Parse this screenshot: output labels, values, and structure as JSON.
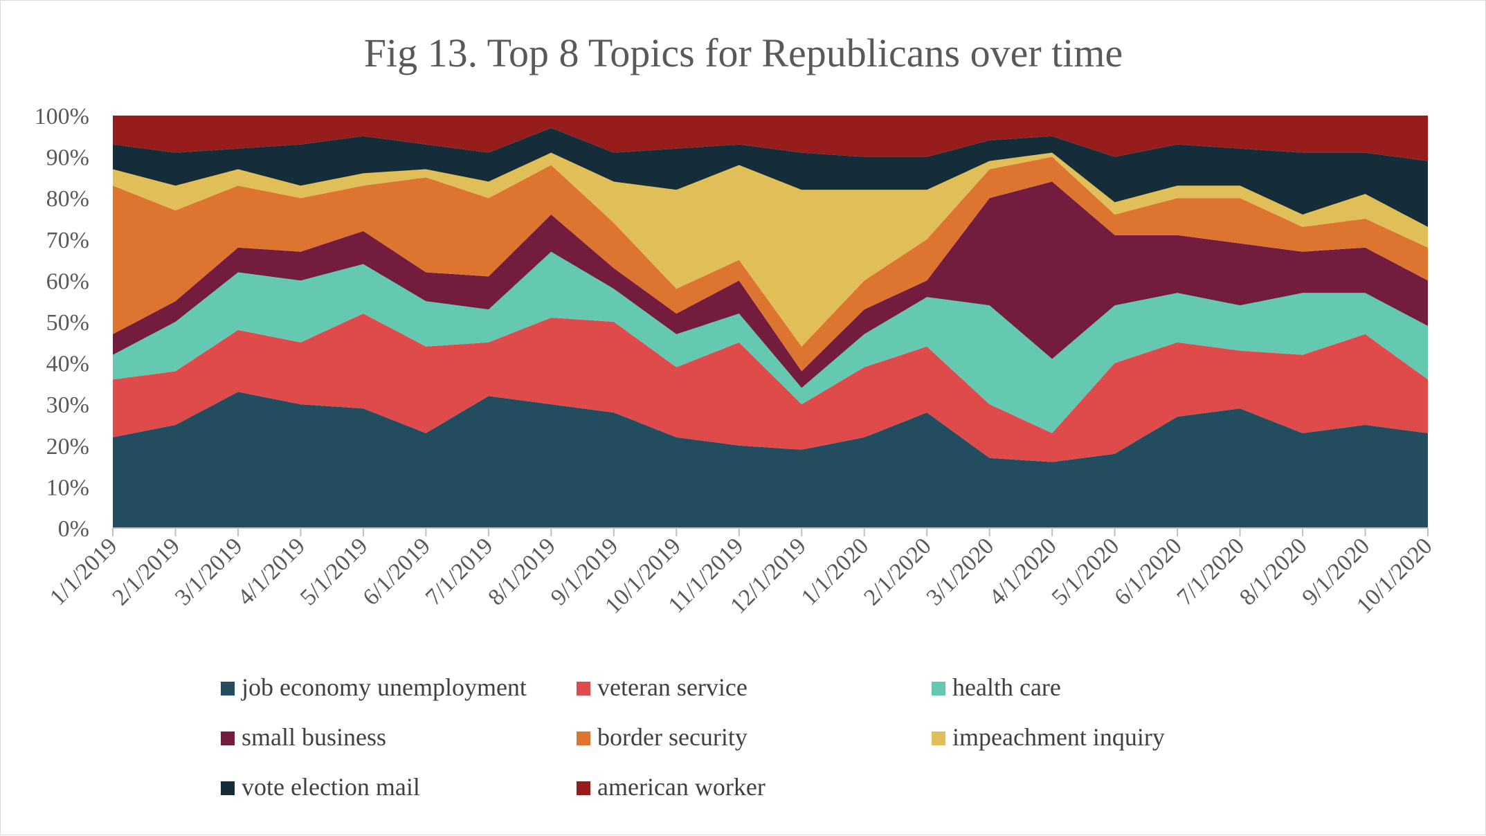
{
  "chart_data": {
    "type": "area",
    "stacked": "percent",
    "title": "Fig 13. Top 8 Topics for Republicans over time",
    "xlabel": "",
    "ylabel": "",
    "ylim": [
      0,
      100
    ],
    "y_ticks": [
      "0%",
      "10%",
      "20%",
      "30%",
      "40%",
      "50%",
      "60%",
      "70%",
      "80%",
      "90%",
      "100%"
    ],
    "grid": false,
    "legend_position": "bottom",
    "categories": [
      "1/1/2019",
      "2/1/2019",
      "3/1/2019",
      "4/1/2019",
      "5/1/2019",
      "6/1/2019",
      "7/1/2019",
      "8/1/2019",
      "9/1/2019",
      "10/1/2019",
      "11/1/2019",
      "12/1/2019",
      "1/1/2020",
      "2/1/2020",
      "3/1/2020",
      "4/1/2020",
      "5/1/2020",
      "6/1/2020",
      "7/1/2020",
      "8/1/2020",
      "9/1/2020",
      "10/1/2020"
    ],
    "series": [
      {
        "name": "job economy unemployment",
        "color": "#244c5f",
        "values": [
          22,
          25,
          33,
          30,
          29,
          23,
          32,
          30,
          28,
          22,
          20,
          19,
          22,
          28,
          17,
          16,
          18,
          27,
          29,
          23,
          25,
          23
        ]
      },
      {
        "name": "veteran service",
        "color": "#df4a4a",
        "values": [
          14,
          13,
          15,
          15,
          23,
          21,
          13,
          21,
          22,
          17,
          25,
          11,
          17,
          16,
          13,
          7,
          22,
          18,
          14,
          19,
          22,
          13
        ]
      },
      {
        "name": "health care",
        "color": "#65c8b1",
        "values": [
          6,
          12,
          14,
          15,
          12,
          11,
          8,
          16,
          8,
          8,
          7,
          4,
          8,
          12,
          24,
          18,
          14,
          12,
          11,
          15,
          10,
          13
        ]
      },
      {
        "name": "small business",
        "color": "#731c3e",
        "values": [
          5,
          5,
          6,
          7,
          8,
          7,
          8,
          9,
          5,
          5,
          8,
          4,
          6,
          4,
          26,
          43,
          17,
          14,
          15,
          10,
          11,
          11
        ]
      },
      {
        "name": "border security",
        "color": "#dd7531",
        "values": [
          36,
          22,
          15,
          13,
          11,
          23,
          19,
          12,
          11,
          6,
          5,
          6,
          7,
          10,
          7,
          6,
          5,
          9,
          11,
          6,
          7,
          8
        ]
      },
      {
        "name": "impeachment inquiry",
        "color": "#e0be58",
        "values": [
          4,
          6,
          4,
          3,
          3,
          2,
          4,
          3,
          10,
          24,
          23,
          38,
          22,
          12,
          2,
          1,
          3,
          3,
          3,
          3,
          6,
          5
        ]
      },
      {
        "name": "vote election mail",
        "color": "#152d38",
        "values": [
          6,
          8,
          5,
          10,
          9,
          6,
          7,
          6,
          7,
          10,
          5,
          9,
          8,
          8,
          5,
          4,
          11,
          10,
          9,
          15,
          10,
          16
        ]
      },
      {
        "name": "american worker",
        "color": "#971d1d",
        "values": [
          7,
          9,
          8,
          7,
          5,
          7,
          9,
          3,
          9,
          8,
          7,
          9,
          10,
          10,
          6,
          5,
          10,
          7,
          8,
          9,
          9,
          11
        ]
      }
    ]
  }
}
